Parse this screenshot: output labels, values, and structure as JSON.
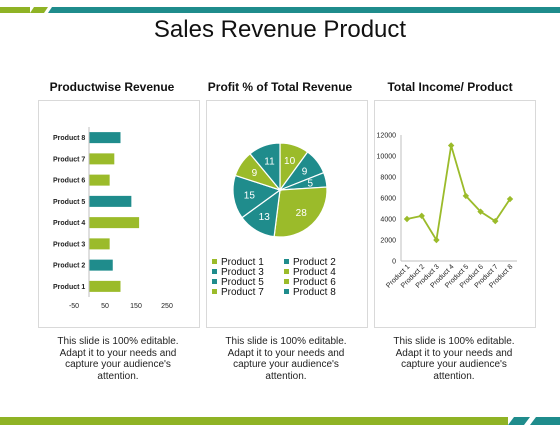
{
  "slide": {
    "title": "Sales Revenue Product",
    "colors": {
      "teal": "#1f8c8c",
      "green": "#9bbb2a",
      "topbar": "#1f8c8c",
      "bottombar": "#8fb325"
    }
  },
  "panels": [
    {
      "title": "Productwise Revenue",
      "caption": [
        "This slide is 100% editable.",
        "Adapt it to your needs and",
        "capture your audience's",
        "attention."
      ]
    },
    {
      "title": "Profit % of Total Revenue",
      "caption": [
        "This slide is 100% editable.",
        "Adapt it to your needs and",
        "capture your audience's",
        "attention."
      ]
    },
    {
      "title": "Total Income/ Product",
      "caption": [
        "This slide is 100% editable.",
        "Adapt it to your needs and",
        "capture your audience's",
        "attention."
      ]
    }
  ],
  "chart_data": [
    {
      "type": "bar",
      "orientation": "horizontal",
      "title": "Productwise Revenue",
      "categories": [
        "Product 8",
        "Product 7",
        "Product 6",
        "Product 5",
        "Product 4",
        "Product 3",
        "Product 2",
        "Product 1"
      ],
      "values": [
        100,
        80,
        65,
        135,
        160,
        65,
        75,
        100
      ],
      "colors": [
        "#1f8c8c",
        "#9bbb2a",
        "#9bbb2a",
        "#1f8c8c",
        "#9bbb2a",
        "#9bbb2a",
        "#1f8c8c",
        "#9bbb2a"
      ],
      "xlim": [
        -50,
        250
      ],
      "xticks": [
        "-50",
        "50",
        "150",
        "250"
      ],
      "grid": false
    },
    {
      "type": "pie",
      "title": "Profit % of Total Revenue",
      "labels": [
        "Product 1",
        "Product 2",
        "Product 3",
        "Product 4",
        "Product 5",
        "Product 6",
        "Product 7",
        "Product 8"
      ],
      "values": [
        10,
        9,
        5,
        28,
        13,
        15,
        9,
        11
      ],
      "colors": [
        "#9bbb2a",
        "#1f8c8c",
        "#1f8c8c",
        "#9bbb2a",
        "#1f8c8c",
        "#1f8c8c",
        "#9bbb2a",
        "#1f8c8c"
      ],
      "legend": "bottom"
    },
    {
      "type": "line",
      "title": "Total Income/ Product",
      "categories": [
        "Product 1",
        "Product 2",
        "Product 3",
        "Product 4",
        "Product 5",
        "Product 6",
        "Product 7",
        "Product 8"
      ],
      "values": [
        4000,
        4300,
        2000,
        11000,
        6200,
        4700,
        3800,
        5900
      ],
      "color": "#9bbb2a",
      "ylim": [
        0,
        12000
      ],
      "yticks": [
        "0",
        "2000",
        "4000",
        "6000",
        "8000",
        "10000",
        "12000"
      ],
      "grid": false
    }
  ]
}
